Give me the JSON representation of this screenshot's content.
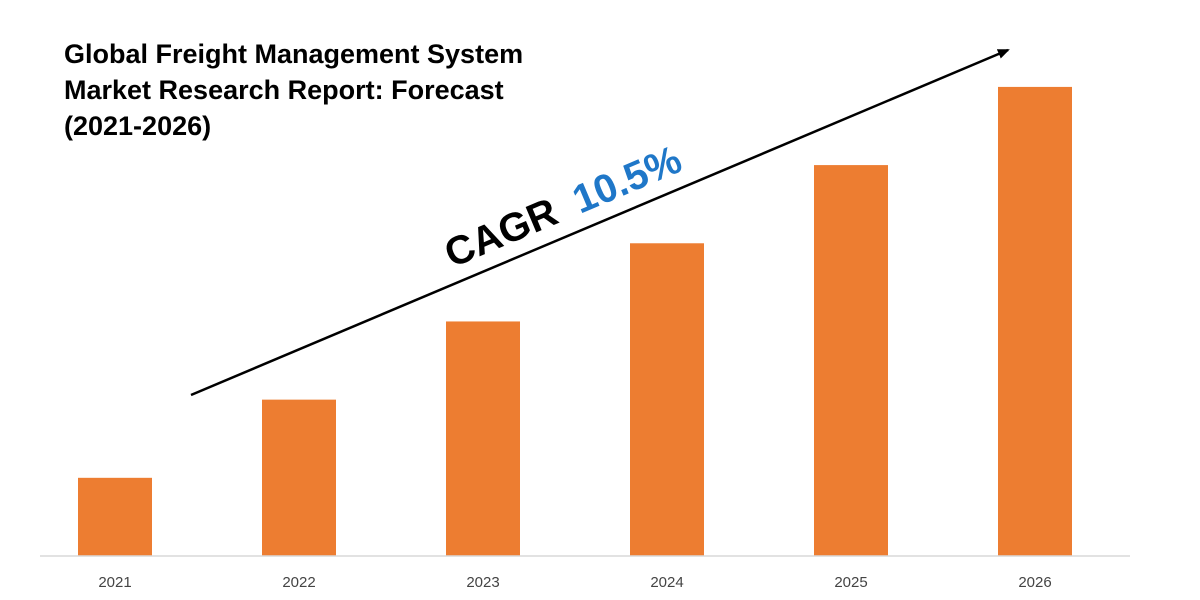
{
  "chart_data": {
    "type": "bar",
    "title_lines": [
      "Global Freight Management System",
      "Market Research Report: Forecast",
      "(2021-2026)"
    ],
    "categories": [
      "2021",
      "2022",
      "2023",
      "2024",
      "2025",
      "2026"
    ],
    "values": [
      1.0,
      2.0,
      3.0,
      4.0,
      5.0,
      6.0
    ],
    "ylim": [
      0,
      6.6
    ],
    "grid": false,
    "legend": "none",
    "bar_color": "#ED7D31",
    "annotation": {
      "prefix": "CAGR",
      "value": "10.5%",
      "prefix_color": "#000000",
      "value_color": "#1F77C8"
    },
    "trend_arrow": "rising"
  }
}
